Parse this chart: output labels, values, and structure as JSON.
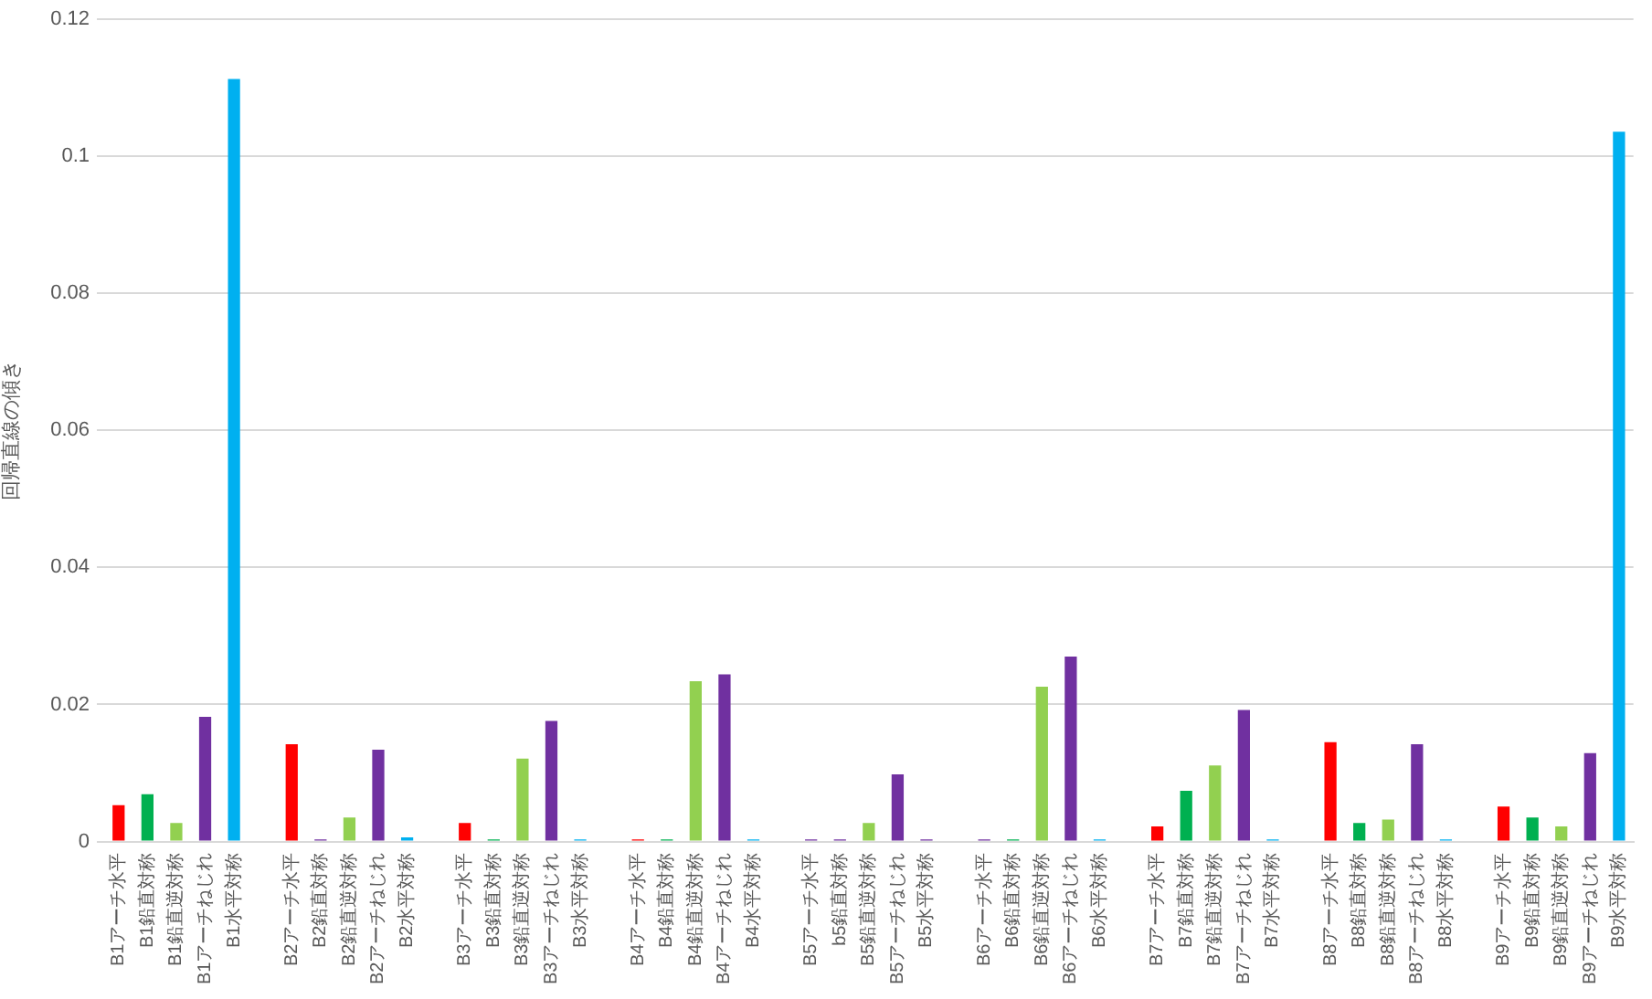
{
  "chart_data": {
    "type": "bar",
    "ylabel": "回帰直線の傾き",
    "categories": [
      "B1アーチ水平",
      "B1鉛直対称",
      "B1鉛直逆対称",
      "B1アーチねじれ",
      "B1水平対称",
      null,
      "B2アーチ水平",
      "B2鉛直対称",
      "B2鉛直逆対称",
      "B2アーチねじれ",
      "B2水平対称",
      null,
      "B3アーチ水平",
      "B3鉛直対称",
      "B3鉛直逆対称",
      "B3アーチねじれ",
      "B3水平対称",
      null,
      "B4アーチ水平",
      "B4鉛直対称",
      "B4鉛直逆対称",
      "B4アーチねじれ",
      "B4水平対称",
      null,
      "B5アーチ水平",
      "b5鉛直対称",
      "B5鉛直逆対称",
      "B5アーチねじれ",
      "B5水平対称",
      null,
      "B6アーチ水平",
      "B6鉛直対称",
      "B6鉛直逆対称",
      "B6アーチねじれ",
      "B6水平対称",
      null,
      "B7アーチ水平",
      "B7鉛直対称",
      "B7鉛直逆対称",
      "B7アーチねじれ",
      "B7水平対称",
      null,
      "B8アーチ水平",
      "B8鉛直対称",
      "B8鉛直逆対称",
      "B8アーチねじれ",
      "B8水平対称",
      null,
      "B9アーチ水平",
      "B9鉛直対称",
      "B9鉛直逆対称",
      "B9アーチねじれ",
      "B9水平対称"
    ],
    "values": [
      0.0053,
      0.0069,
      0.0027,
      0.0182,
      0.1113,
      null,
      0.0142,
      0.0003,
      0.0035,
      0.0134,
      0.0006,
      null,
      0.0027,
      0.0003,
      0.0121,
      0.0176,
      0.0003,
      null,
      0.0003,
      0.0003,
      0.0234,
      0.0244,
      0.0003,
      null,
      0.0003,
      0.0003,
      0.0027,
      0.0098,
      0.0003,
      null,
      0.0003,
      0.0003,
      0.0226,
      0.027,
      0.0003,
      null,
      0.0022,
      0.0074,
      0.0111,
      0.0192,
      0.0003,
      null,
      0.0145,
      0.0027,
      0.0032,
      0.0142,
      0.0003,
      null,
      0.0051,
      0.0035,
      0.0022,
      0.0129,
      0.1036
    ],
    "colors": [
      "#ff0000",
      "#00b050",
      "#92d050",
      "#7030a0",
      "#00b0f0",
      null,
      "#ff0000",
      "#7030a0",
      "#92d050",
      "#7030a0",
      "#00b0f0",
      null,
      "#ff0000",
      "#00b050",
      "#92d050",
      "#7030a0",
      "#00b0f0",
      null,
      "#ff0000",
      "#00b050",
      "#92d050",
      "#7030a0",
      "#00b0f0",
      null,
      "#7030a0",
      "#7030a0",
      "#92d050",
      "#7030a0",
      "#7030a0",
      null,
      "#7030a0",
      "#00b050",
      "#92d050",
      "#7030a0",
      "#00b0f0",
      null,
      "#ff0000",
      "#00b050",
      "#92d050",
      "#7030a0",
      "#00b0f0",
      null,
      "#ff0000",
      "#00b050",
      "#92d050",
      "#7030a0",
      "#00b0f0",
      null,
      "#ff0000",
      "#00b050",
      "#92d050",
      "#7030a0",
      "#00b0f0"
    ],
    "ylim": [
      0,
      0.12
    ],
    "yticks": [
      0,
      0.02,
      0.04,
      0.06,
      0.08,
      0.1,
      0.12
    ],
    "grid": "y"
  }
}
